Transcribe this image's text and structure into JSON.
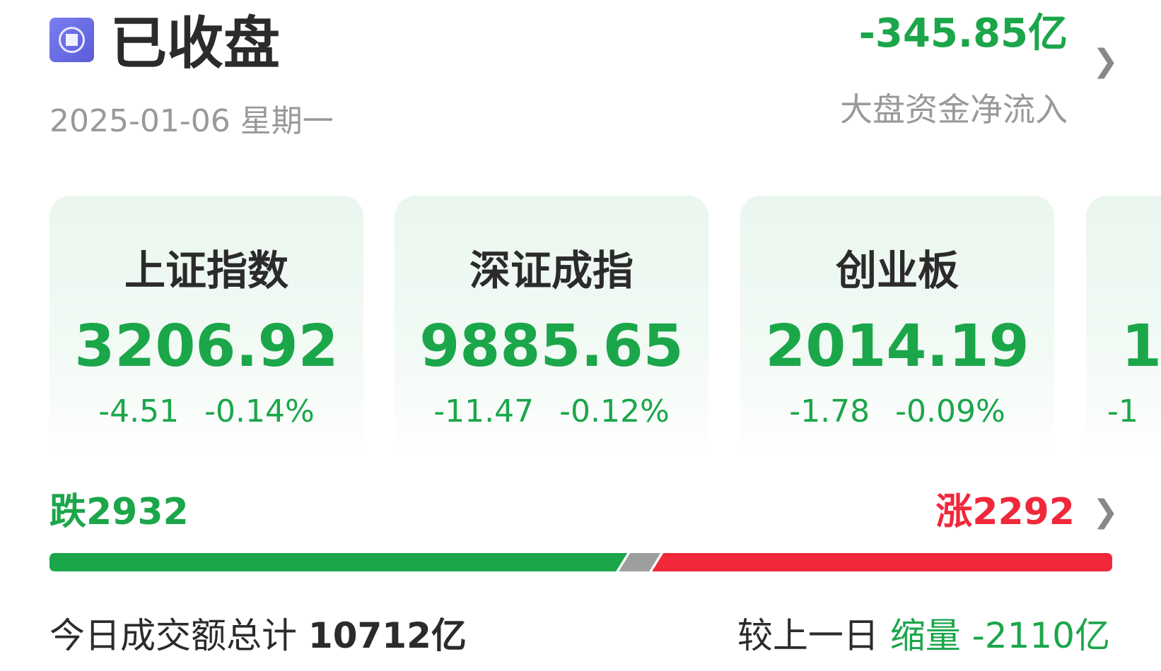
{
  "header": {
    "status_icon": "market-closed-icon",
    "status": "已收盘",
    "date": "2025-01-06 星期一",
    "net_flow_value": "-345.85亿",
    "net_flow_label": "大盘资金净流入"
  },
  "indices": [
    {
      "name": "上证指数",
      "value": "3206.92",
      "change": "-4.51",
      "change_pct": "-0.14%"
    },
    {
      "name": "深证成指",
      "value": "9885.65",
      "change": "-11.47",
      "change_pct": "-0.12%"
    },
    {
      "name": "创业板",
      "value": "2014.19",
      "change": "-1.78",
      "change_pct": "-0.09%"
    },
    {
      "name": "",
      "value": "1",
      "change": "-1",
      "change_pct": ""
    }
  ],
  "breadth": {
    "down_label": "跌2932",
    "up_label": "涨2292",
    "down_count": 2932,
    "up_count": 2292,
    "down_color": "#1ba64a",
    "flat_color": "#9e9e9e",
    "up_color": "#f0283a"
  },
  "turnover": {
    "label": "今日成交额总计",
    "value": "10712亿",
    "compare_label": "较上一日",
    "compare_type": "缩量",
    "compare_value": "-2110亿"
  }
}
